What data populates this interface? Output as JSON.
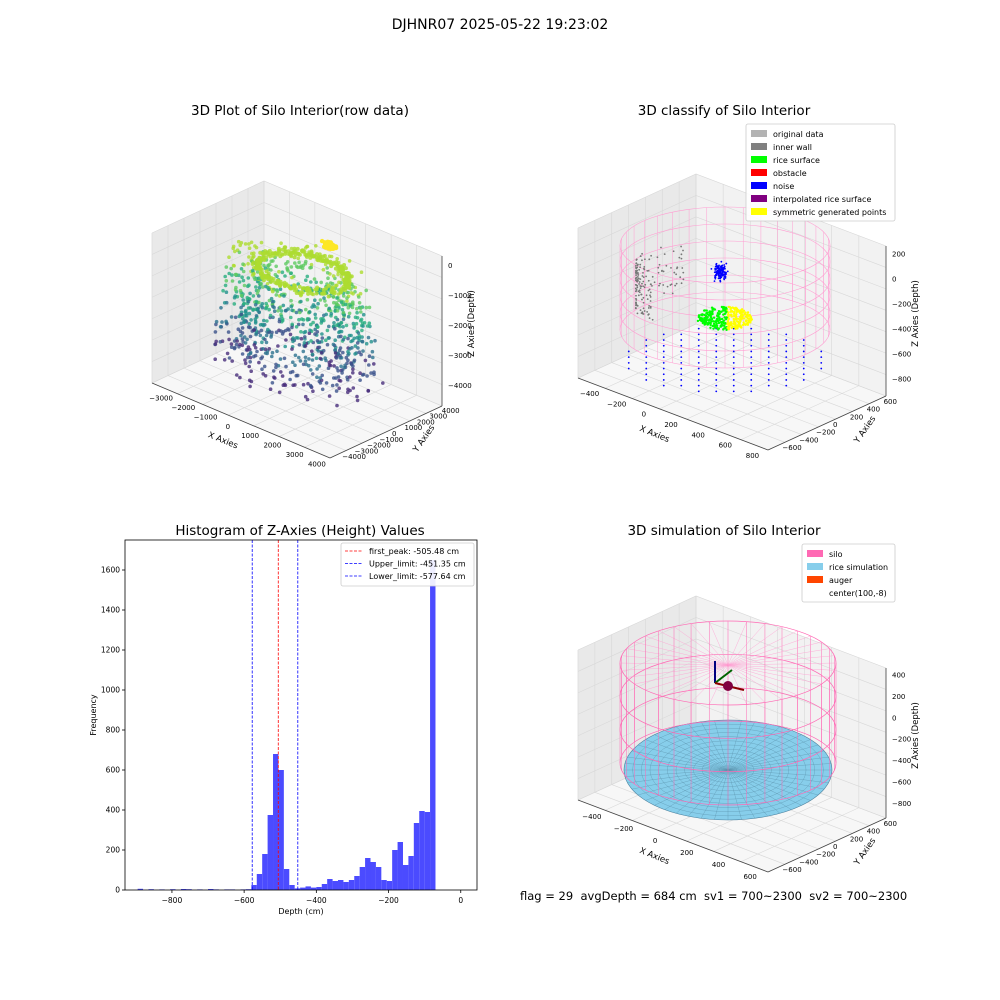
{
  "suptitle": "DJHNR07 2025-05-22 19:23:02",
  "footer": "flag = 29  avgDepth = 684 cm  sv1 = 700~2300  sv2 = 700~2300",
  "chart_data": [
    {
      "type": "scatter3d",
      "title": "3D Plot of Silo Interior(row data)",
      "xlabel": "X Axies",
      "ylabel": "Y Axies",
      "zlabel": "Z Axies (Depth)",
      "xticks": [
        "−3000",
        "−2000",
        "−1000",
        "0",
        "1000",
        "2000",
        "3000",
        "4000"
      ],
      "yticks": [
        "−4000",
        "−3000",
        "−2000",
        "−1000",
        "0",
        "1000",
        "2000",
        "3000",
        "4000"
      ],
      "zticks": [
        "0",
        "−1000",
        "−2000",
        "−3000",
        "−4000"
      ],
      "xlim": [
        -3500,
        4000
      ],
      "ylim": [
        -4000,
        4000
      ],
      "zlim": [
        -4500,
        0
      ],
      "colormap": "viridis"
    },
    {
      "type": "scatter3d",
      "title": "3D classify of Silo Interior",
      "xlabel": "X Axies",
      "ylabel": "Y Axies",
      "zlabel": "Z Axies (Depth)",
      "xticks": [
        "−400",
        "−200",
        "0",
        "200",
        "400",
        "600",
        "800"
      ],
      "yticks": [
        "−600",
        "−400",
        "−200",
        "0",
        "200",
        "400",
        "600"
      ],
      "zticks": [
        "200",
        "0",
        "−200",
        "−400",
        "−600",
        "−800"
      ],
      "xlim": [
        -500,
        800
      ],
      "ylim": [
        -600,
        600
      ],
      "zlim": [
        -900,
        200
      ],
      "legend": [
        {
          "label": "original data",
          "color": "#b3b3b3"
        },
        {
          "label": "inner wall",
          "color": "#808080"
        },
        {
          "label": "rice surface",
          "color": "#00ff00"
        },
        {
          "label": "obstacle",
          "color": "#ff0000"
        },
        {
          "label": "noise",
          "color": "#0000ff"
        },
        {
          "label": "interpolated rice surface",
          "color": "#800080"
        },
        {
          "label": "symmetric generated points",
          "color": "#ffff00"
        }
      ]
    },
    {
      "type": "bar",
      "title": "Histogram of Z-Axies (Height) Values",
      "xlabel": "Depth (cm)",
      "ylabel": "Frequency",
      "xlim": [
        -930,
        45
      ],
      "ylim": [
        0,
        1750
      ],
      "xticks": [
        -800,
        -600,
        -400,
        -200,
        0
      ],
      "yticks": [
        0,
        200,
        400,
        600,
        800,
        1000,
        1200,
        1400,
        1600
      ],
      "bin_width": 15,
      "bins": [
        [
          -895,
          6
        ],
        [
          -865,
          4
        ],
        [
          -835,
          3
        ],
        [
          -805,
          4
        ],
        [
          -775,
          5
        ],
        [
          -760,
          4
        ],
        [
          -730,
          3
        ],
        [
          -700,
          5
        ],
        [
          -685,
          3
        ],
        [
          -655,
          3
        ],
        [
          -640,
          3
        ],
        [
          -610,
          3
        ],
        [
          -595,
          4
        ],
        [
          -580,
          25
        ],
        [
          -565,
          80
        ],
        [
          -550,
          180
        ],
        [
          -535,
          375
        ],
        [
          -520,
          680
        ],
        [
          -505,
          600
        ],
        [
          -490,
          105
        ],
        [
          -475,
          25
        ],
        [
          -460,
          8
        ],
        [
          -445,
          12
        ],
        [
          -430,
          18
        ],
        [
          -415,
          12
        ],
        [
          -400,
          15
        ],
        [
          -385,
          30
        ],
        [
          -370,
          55
        ],
        [
          -355,
          45
        ],
        [
          -340,
          50
        ],
        [
          -325,
          40
        ],
        [
          -310,
          50
        ],
        [
          -295,
          70
        ],
        [
          -280,
          115
        ],
        [
          -265,
          160
        ],
        [
          -250,
          140
        ],
        [
          -235,
          115
        ],
        [
          -220,
          50
        ],
        [
          -205,
          45
        ],
        [
          -190,
          200
        ],
        [
          -175,
          240
        ],
        [
          -160,
          125
        ],
        [
          -145,
          170
        ],
        [
          -130,
          335
        ],
        [
          -115,
          395
        ],
        [
          -100,
          390
        ],
        [
          -85,
          1650
        ]
      ],
      "vlines": [
        {
          "label": "first_peak: -505.48 cm",
          "x": -505.48,
          "color": "#ff0000"
        },
        {
          "label": "Upper_limit: -451.35 cm",
          "x": -451.35,
          "color": "#0000ff"
        },
        {
          "label": "Lower_limit: -577.64 cm",
          "x": -577.64,
          "color": "#0000ff"
        }
      ],
      "bar_color": "#4b4bff"
    },
    {
      "type": "surface3d",
      "title": "3D simulation of Silo Interior",
      "xlabel": "X Axies",
      "ylabel": "Y Axies",
      "zlabel": "Z Axies (Depth)",
      "xticks": [
        "−400",
        "−200",
        "0",
        "200",
        "400",
        "600"
      ],
      "yticks": [
        "−600",
        "−400",
        "−200",
        "0",
        "200",
        "400",
        "600"
      ],
      "zticks": [
        "400",
        "200",
        "0",
        "−200",
        "−400",
        "−600",
        "−800"
      ],
      "xlim": [
        -500,
        700
      ],
      "ylim": [
        -700,
        700
      ],
      "zlim": [
        -900,
        450
      ],
      "legend": [
        {
          "label": "silo",
          "color": "#ff69b4"
        },
        {
          "label": "rice simulation",
          "color": "#87ceeb"
        },
        {
          "label": "auger",
          "color": "#ff4500"
        },
        {
          "label": "center(100,-8)",
          "color": "#ffffff"
        }
      ]
    }
  ]
}
